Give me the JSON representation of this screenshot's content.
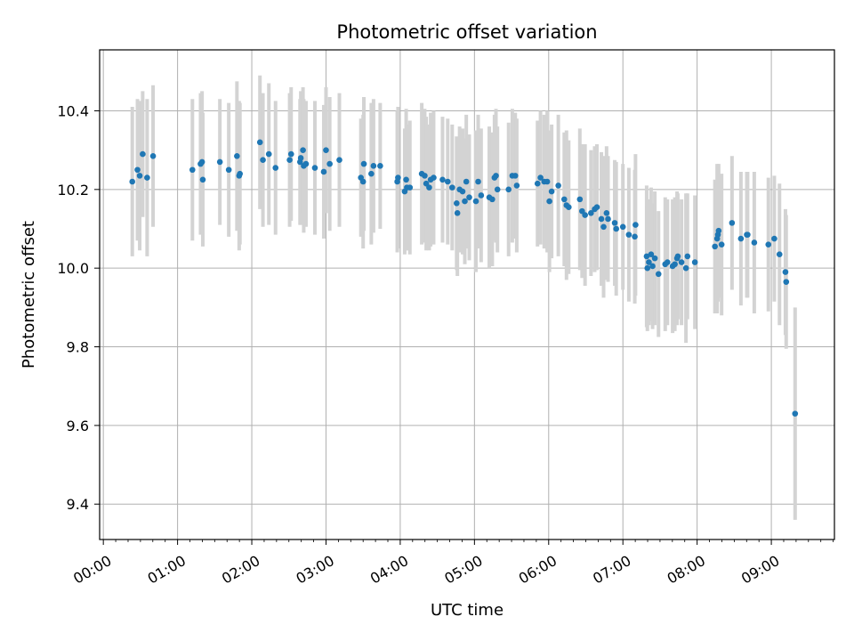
{
  "chart_data": {
    "type": "scatter",
    "title": "Photometric offset variation",
    "xlabel": "UTC time",
    "ylabel": "Photometric offset",
    "x_ticks": [
      "00:00",
      "01:00",
      "02:00",
      "03:00",
      "04:00",
      "05:00",
      "06:00",
      "07:00",
      "08:00",
      "09:00"
    ],
    "y_ticks": [
      9.4,
      9.6,
      9.8,
      10.0,
      10.2,
      10.4
    ],
    "xlim_hours": [
      -0.05,
      9.85
    ],
    "ylim": [
      9.31,
      10.555
    ],
    "grid": true,
    "point_color": "#1f77b4",
    "errorbar_color": "#d3d3d3",
    "x_unit": "hours UTC",
    "points": [
      [
        0.39,
        10.22,
        0.19
      ],
      [
        0.46,
        10.25,
        0.18
      ],
      [
        0.49,
        10.235,
        0.19
      ],
      [
        0.53,
        10.29,
        0.16
      ],
      [
        0.59,
        10.23,
        0.2
      ],
      [
        0.67,
        10.285,
        0.18
      ],
      [
        1.2,
        10.25,
        0.18
      ],
      [
        1.31,
        10.265,
        0.18
      ],
      [
        1.33,
        10.27,
        0.18
      ],
      [
        1.34,
        10.225,
        0.17
      ],
      [
        1.57,
        10.27,
        0.16
      ],
      [
        1.69,
        10.25,
        0.17
      ],
      [
        1.8,
        10.285,
        0.19
      ],
      [
        1.83,
        10.235,
        0.19
      ],
      [
        1.84,
        10.24,
        0.18
      ],
      [
        2.11,
        10.32,
        0.17
      ],
      [
        2.15,
        10.275,
        0.17
      ],
      [
        2.23,
        10.29,
        0.18
      ],
      [
        2.32,
        10.255,
        0.17
      ],
      [
        2.51,
        10.275,
        0.17
      ],
      [
        2.53,
        10.29,
        0.17
      ],
      [
        2.65,
        10.27,
        0.16
      ],
      [
        2.66,
        10.28,
        0.17
      ],
      [
        2.69,
        10.3,
        0.16
      ],
      [
        2.7,
        10.26,
        0.17
      ],
      [
        2.73,
        10.265,
        0.16
      ],
      [
        2.85,
        10.255,
        0.17
      ],
      [
        2.97,
        10.245,
        0.17
      ],
      [
        3.0,
        10.3,
        0.16
      ],
      [
        3.05,
        10.265,
        0.17
      ],
      [
        3.18,
        10.275,
        0.17
      ],
      [
        3.47,
        10.23,
        0.15
      ],
      [
        3.5,
        10.22,
        0.17
      ],
      [
        3.51,
        10.265,
        0.17
      ],
      [
        3.61,
        10.24,
        0.18
      ],
      [
        3.64,
        10.26,
        0.17
      ],
      [
        3.73,
        10.26,
        0.16
      ],
      [
        3.96,
        10.22,
        0.18
      ],
      [
        3.97,
        10.23,
        0.18
      ],
      [
        4.06,
        10.195,
        0.16
      ],
      [
        4.08,
        10.225,
        0.18
      ],
      [
        4.09,
        10.205,
        0.16
      ],
      [
        4.13,
        10.205,
        0.17
      ],
      [
        4.29,
        10.24,
        0.18
      ],
      [
        4.33,
        10.235,
        0.17
      ],
      [
        4.35,
        10.215,
        0.17
      ],
      [
        4.39,
        10.205,
        0.16
      ],
      [
        4.41,
        10.225,
        0.17
      ],
      [
        4.45,
        10.23,
        0.17
      ],
      [
        4.57,
        10.225,
        0.16
      ],
      [
        4.64,
        10.22,
        0.16
      ],
      [
        4.7,
        10.205,
        0.16
      ],
      [
        4.76,
        10.165,
        0.17
      ],
      [
        4.77,
        10.14,
        0.16
      ],
      [
        4.8,
        10.2,
        0.16
      ],
      [
        4.84,
        10.195,
        0.16
      ],
      [
        4.87,
        10.17,
        0.16
      ],
      [
        4.89,
        10.22,
        0.17
      ],
      [
        4.93,
        10.18,
        0.16
      ],
      [
        5.02,
        10.17,
        0.18
      ],
      [
        5.05,
        10.22,
        0.17
      ],
      [
        5.09,
        10.185,
        0.17
      ],
      [
        5.2,
        10.18,
        0.18
      ],
      [
        5.24,
        10.175,
        0.17
      ],
      [
        5.27,
        10.23,
        0.16
      ],
      [
        5.29,
        10.235,
        0.17
      ],
      [
        5.31,
        10.2,
        0.16
      ],
      [
        5.46,
        10.2,
        0.17
      ],
      [
        5.51,
        10.235,
        0.17
      ],
      [
        5.55,
        10.235,
        0.16
      ],
      [
        5.57,
        10.21,
        0.17
      ],
      [
        5.85,
        10.215,
        0.16
      ],
      [
        5.89,
        10.23,
        0.17
      ],
      [
        5.94,
        10.22,
        0.17
      ],
      [
        5.98,
        10.22,
        0.18
      ],
      [
        6.01,
        10.17,
        0.18
      ],
      [
        6.04,
        10.195,
        0.17
      ],
      [
        6.13,
        10.21,
        0.18
      ],
      [
        6.21,
        10.175,
        0.17
      ],
      [
        6.24,
        10.16,
        0.19
      ],
      [
        6.27,
        10.155,
        0.17
      ],
      [
        6.42,
        10.175,
        0.18
      ],
      [
        6.45,
        10.145,
        0.17
      ],
      [
        6.49,
        10.135,
        0.18
      ],
      [
        6.57,
        10.14,
        0.16
      ],
      [
        6.62,
        10.15,
        0.16
      ],
      [
        6.65,
        10.155,
        0.16
      ],
      [
        6.71,
        10.125,
        0.17
      ],
      [
        6.74,
        10.105,
        0.18
      ],
      [
        6.78,
        10.14,
        0.17
      ],
      [
        6.8,
        10.125,
        0.16
      ],
      [
        6.89,
        10.115,
        0.16
      ],
      [
        6.91,
        10.1,
        0.17
      ],
      [
        7.0,
        10.105,
        0.16
      ],
      [
        7.08,
        10.085,
        0.17
      ],
      [
        7.16,
        10.08,
        0.17
      ],
      [
        7.17,
        10.11,
        0.18
      ],
      [
        7.32,
        10.03,
        0.18
      ],
      [
        7.33,
        10.0,
        0.16
      ],
      [
        7.35,
        10.015,
        0.16
      ],
      [
        7.38,
        10.035,
        0.17
      ],
      [
        7.4,
        10.005,
        0.16
      ],
      [
        7.43,
        10.025,
        0.17
      ],
      [
        7.48,
        9.985,
        0.16
      ],
      [
        7.57,
        10.01,
        0.17
      ],
      [
        7.6,
        10.015,
        0.16
      ],
      [
        7.67,
        10.005,
        0.17
      ],
      [
        7.7,
        10.01,
        0.17
      ],
      [
        7.73,
        10.025,
        0.17
      ],
      [
        7.74,
        10.03,
        0.16
      ],
      [
        7.79,
        10.015,
        0.16
      ],
      [
        7.85,
        10.0,
        0.19
      ],
      [
        7.87,
        10.03,
        0.16
      ],
      [
        7.97,
        10.015,
        0.17
      ],
      [
        8.24,
        10.055,
        0.17
      ],
      [
        8.27,
        10.075,
        0.19
      ],
      [
        8.28,
        10.085,
        0.17
      ],
      [
        8.29,
        10.095,
        0.17
      ],
      [
        8.33,
        10.06,
        0.18
      ],
      [
        8.47,
        10.115,
        0.17
      ],
      [
        8.59,
        10.075,
        0.17
      ],
      [
        8.67,
        10.085,
        0.16
      ],
      [
        8.68,
        10.085,
        0.16
      ],
      [
        8.77,
        10.065,
        0.18
      ],
      [
        8.96,
        10.06,
        0.17
      ],
      [
        9.04,
        10.075,
        0.16
      ],
      [
        9.11,
        10.035,
        0.18
      ],
      [
        9.19,
        9.99,
        0.16
      ],
      [
        9.2,
        9.965,
        0.17
      ],
      [
        9.32,
        9.63,
        0.27
      ]
    ]
  }
}
